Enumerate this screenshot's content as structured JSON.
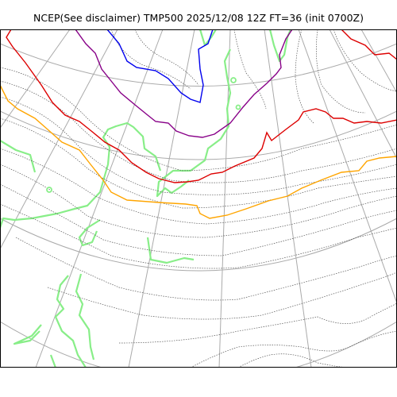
{
  "title": "NCEP(See disclaimer) TMP500 2025/12/08 12Z FT=36 (init 0700Z)",
  "map": {
    "variable": "TMP500",
    "colors": {
      "background": "#ffffff",
      "frame": "#000000",
      "graticule": "#aaaaaa",
      "coastline": "#88ee88",
      "isotherm_minor": "#555555",
      "isotherm_blue": "#0000ee",
      "isotherm_purple": "#880088",
      "isotherm_red": "#dd0000",
      "isotherm_orange": "#ffa500"
    }
  }
}
